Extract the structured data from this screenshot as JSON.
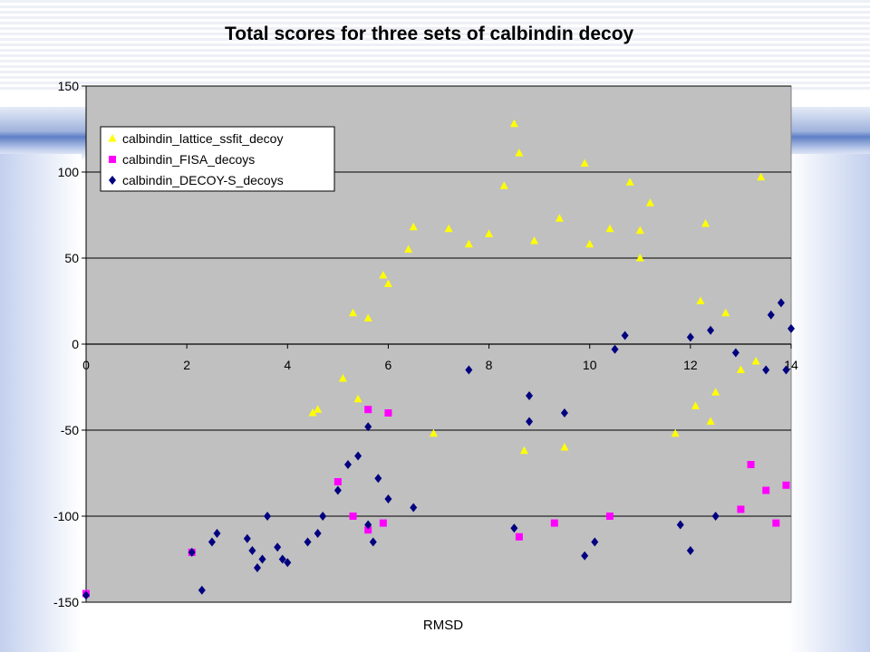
{
  "slide": {
    "title": "Total scores for three sets of calbindin decoy"
  },
  "chart_data": {
    "type": "scatter",
    "title": "Total scores for three sets of calbindin decoy",
    "xlabel": "RMSD",
    "ylabel": "",
    "xlim": [
      0,
      14
    ],
    "ylim": [
      -150,
      150
    ],
    "x_ticks": [
      0,
      2,
      4,
      6,
      8,
      10,
      12,
      14
    ],
    "y_ticks": [
      150,
      100,
      50,
      0,
      -50,
      -100,
      -150
    ],
    "grid": "horizontal",
    "legend_position": "top-left",
    "plot_background": "#c0c0c0",
    "series": [
      {
        "name": "calbindin_lattice_ssfit_decoy",
        "marker": "triangle",
        "color": "#ffff00",
        "points": [
          [
            8.5,
            128
          ],
          [
            8.6,
            111
          ],
          [
            9.9,
            105
          ],
          [
            13.4,
            97
          ],
          [
            8.3,
            92
          ],
          [
            10.8,
            94
          ],
          [
            11.2,
            82
          ],
          [
            12.3,
            70
          ],
          [
            6.5,
            68
          ],
          [
            7.2,
            67
          ],
          [
            10.4,
            67
          ],
          [
            11.0,
            66
          ],
          [
            8.0,
            64
          ],
          [
            8.9,
            60
          ],
          [
            9.4,
            73
          ],
          [
            7.6,
            58
          ],
          [
            10.0,
            58
          ],
          [
            6.4,
            55
          ],
          [
            11.0,
            50
          ],
          [
            5.9,
            40
          ],
          [
            6.0,
            35
          ],
          [
            5.3,
            18
          ],
          [
            5.6,
            15
          ],
          [
            12.2,
            25
          ],
          [
            12.7,
            18
          ],
          [
            13.3,
            -10
          ],
          [
            13.0,
            -15
          ],
          [
            4.6,
            -38
          ],
          [
            4.5,
            -40
          ],
          [
            5.1,
            -20
          ],
          [
            5.4,
            -32
          ],
          [
            12.5,
            -28
          ],
          [
            12.4,
            -45
          ],
          [
            12.1,
            -36
          ],
          [
            11.7,
            -52
          ],
          [
            6.9,
            -52
          ],
          [
            8.7,
            -62
          ],
          [
            9.5,
            -60
          ]
        ]
      },
      {
        "name": "calbindin_FISA_decoys",
        "marker": "square",
        "color": "#ff00ff",
        "points": [
          [
            0.0,
            -145
          ],
          [
            2.1,
            -121
          ],
          [
            13.7,
            -104
          ],
          [
            5.6,
            -38
          ],
          [
            6.0,
            -40
          ],
          [
            8.6,
            -112
          ],
          [
            5.9,
            -104
          ],
          [
            5.6,
            -108
          ],
          [
            9.3,
            -104
          ],
          [
            10.4,
            -100
          ],
          [
            13.0,
            -96
          ],
          [
            13.9,
            -82
          ],
          [
            13.5,
            -85
          ],
          [
            13.2,
            -70
          ],
          [
            5.0,
            -80
          ],
          [
            5.3,
            -100
          ]
        ]
      },
      {
        "name": "calbindin_DECOY-S_decoys",
        "marker": "diamond",
        "color": "#000080",
        "points": [
          [
            0.0,
            -146
          ],
          [
            2.3,
            -143
          ],
          [
            2.1,
            -121
          ],
          [
            2.5,
            -115
          ],
          [
            2.6,
            -110
          ],
          [
            3.2,
            -113
          ],
          [
            3.3,
            -120
          ],
          [
            3.4,
            -130
          ],
          [
            3.5,
            -125
          ],
          [
            3.6,
            -100
          ],
          [
            3.8,
            -118
          ],
          [
            3.9,
            -125
          ],
          [
            4.0,
            -127
          ],
          [
            4.4,
            -115
          ],
          [
            4.6,
            -110
          ],
          [
            4.7,
            -100
          ],
          [
            5.0,
            -85
          ],
          [
            5.2,
            -70
          ],
          [
            5.4,
            -65
          ],
          [
            5.6,
            -48
          ],
          [
            5.8,
            -78
          ],
          [
            6.0,
            -90
          ],
          [
            6.5,
            -95
          ],
          [
            5.6,
            -105
          ],
          [
            5.7,
            -115
          ],
          [
            7.6,
            -15
          ],
          [
            8.8,
            -30
          ],
          [
            10.7,
            5
          ],
          [
            12.0,
            4
          ],
          [
            12.4,
            8
          ],
          [
            12.9,
            -5
          ],
          [
            13.6,
            17
          ],
          [
            13.8,
            24
          ],
          [
            14.0,
            9
          ],
          [
            13.5,
            -15
          ],
          [
            13.9,
            -15
          ],
          [
            9.9,
            -123
          ],
          [
            10.1,
            -115
          ],
          [
            11.8,
            -105
          ],
          [
            12.0,
            -120
          ],
          [
            12.5,
            -100
          ],
          [
            10.5,
            -3
          ],
          [
            8.5,
            -107
          ],
          [
            9.5,
            -40
          ],
          [
            8.8,
            -45
          ]
        ]
      }
    ]
  }
}
